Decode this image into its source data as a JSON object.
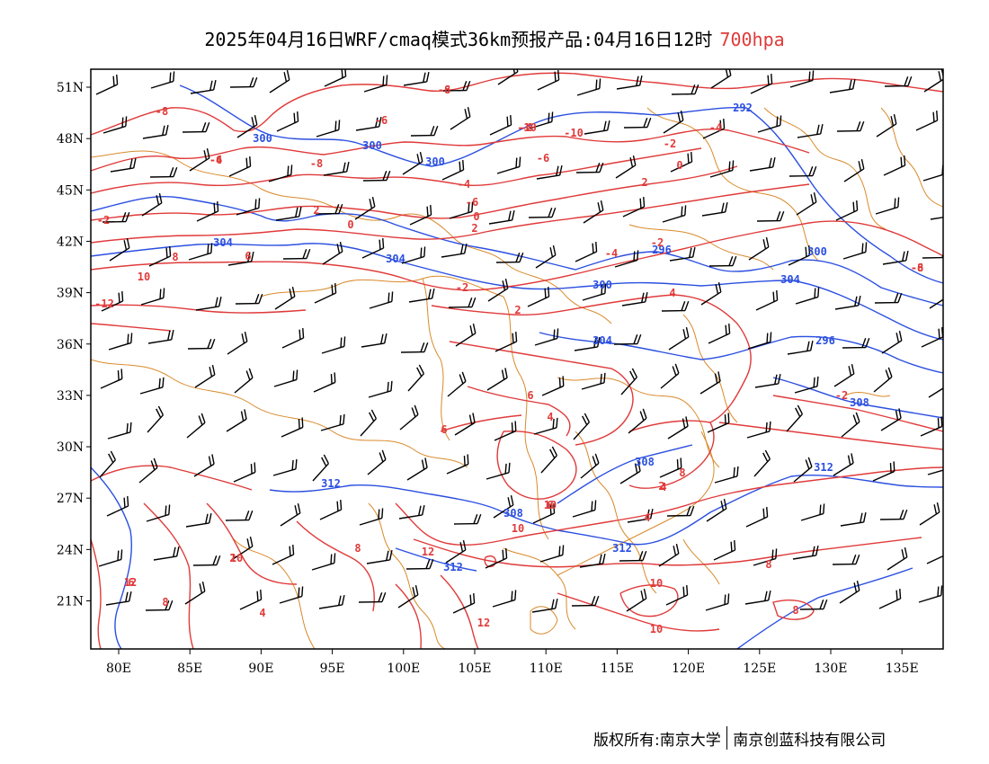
{
  "title": {
    "main": "2025年04月16日WRF/cmaq模式36km预报产品:04月16日12时",
    "level": "700hpa"
  },
  "colors": {
    "temperature_contours": "#e03a3a",
    "geopotential_contours": "#2b4fe0",
    "borders": "#d98a2b",
    "wind_barbs": "#000000",
    "level_text": "#e03a3a"
  },
  "axes": {
    "lat_ticks": [
      "51N",
      "48N",
      "45N",
      "42N",
      "39N",
      "36N",
      "33N",
      "30N",
      "27N",
      "24N",
      "21N"
    ],
    "lon_ticks": [
      "80E",
      "85E",
      "90E",
      "95E",
      "100E",
      "105E",
      "110E",
      "115E",
      "120E",
      "125E",
      "130E",
      "135E"
    ]
  },
  "contour_labels": {
    "geopotential": [
      "292",
      "300",
      "300",
      "300",
      "304",
      "304",
      "296",
      "300",
      "300",
      "304",
      "304",
      "296",
      "308",
      "308",
      "312",
      "312",
      "308",
      "312",
      "312"
    ],
    "temperature": [
      "-8",
      "-6",
      "-6",
      "-4",
      "-8",
      "-10",
      "-8",
      "-6",
      "-4",
      "-2",
      "0",
      "2",
      "-4",
      "-6",
      "-2",
      "0",
      "2",
      "-2",
      "-4",
      "2",
      "0",
      "-2",
      "2",
      "4",
      "-6",
      "-8",
      "-2",
      "6",
      "-12",
      "10",
      "8",
      "6",
      "4",
      "6",
      "8",
      "2",
      "4",
      "6",
      "8",
      "10",
      "12",
      "10",
      "8",
      "6",
      "4",
      "12",
      "12",
      "10",
      "10",
      "8",
      "8",
      "10",
      "2",
      "4",
      "-8",
      "-6",
      "-8",
      "-10"
    ]
  },
  "footer": {
    "left": "版权所有:南京大学",
    "right": "南京创蓝科技有限公司"
  }
}
